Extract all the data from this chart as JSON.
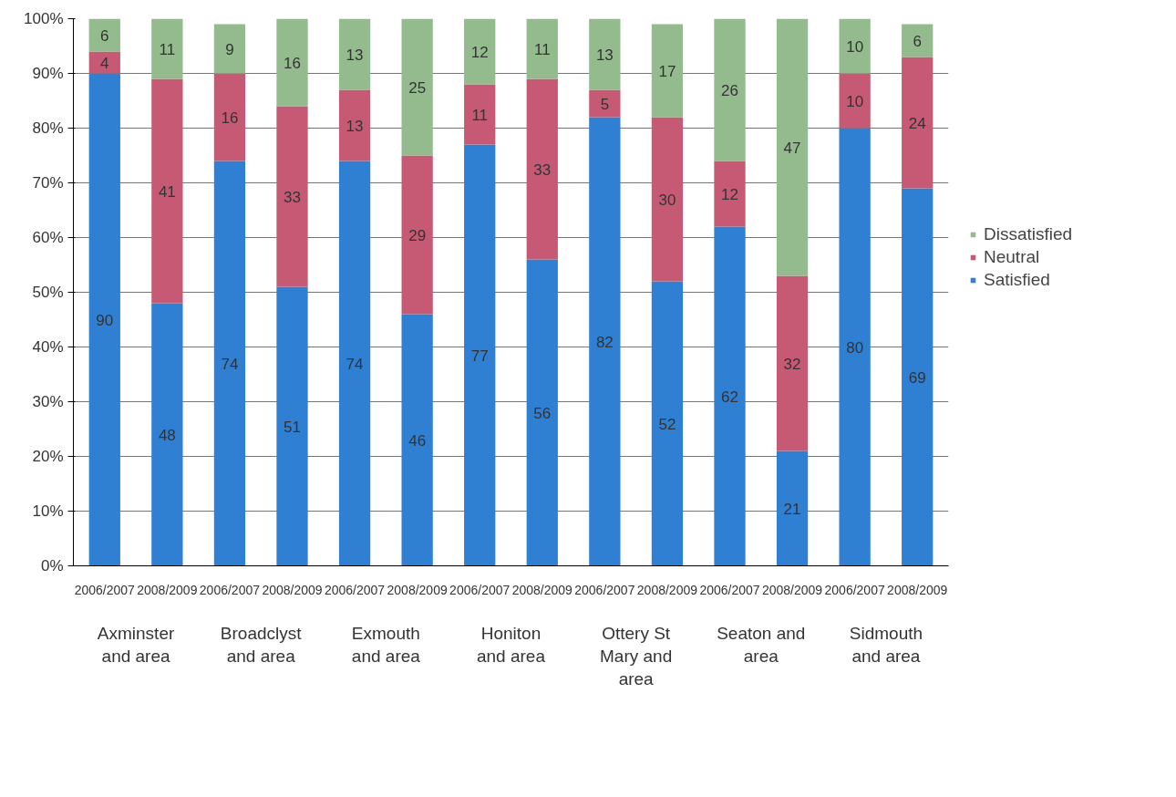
{
  "chart_data": {
    "type": "bar",
    "stacked": true,
    "data_labels": true,
    "grid": "y",
    "legend": "right",
    "categories": [
      "2006/2007",
      "2008/2009",
      "2006/2007",
      "2008/2009",
      "2006/2007",
      "2008/2009",
      "2006/2007",
      "2008/2009",
      "2006/2007",
      "2008/2009",
      "2006/2007",
      "2008/2009",
      "2006/2007",
      "2008/2009"
    ],
    "annotations": [
      "Axminster and area",
      "Broadclyst and area",
      "Exmouth and area",
      "Honiton and area",
      "Ottery St Mary and area",
      "Seaton and area",
      "Sidmouth and area"
    ],
    "ylim": [
      0,
      100
    ],
    "yticks": [
      {
        "value": 0,
        "label": "0%"
      },
      {
        "value": 10,
        "label": "10%"
      },
      {
        "value": 20,
        "label": "20%"
      },
      {
        "value": 30,
        "label": "30%"
      },
      {
        "value": 40,
        "label": "40%"
      },
      {
        "value": 50,
        "label": "50%"
      },
      {
        "value": 60,
        "label": "60%"
      },
      {
        "value": 70,
        "label": "70%"
      },
      {
        "value": 80,
        "label": "80%"
      },
      {
        "value": 90,
        "label": "90%"
      },
      {
        "value": 100,
        "label": "100%"
      }
    ],
    "series": [
      {
        "name": "Satisfied",
        "color": "#2f7fd3",
        "values": [
          90,
          48,
          74,
          51,
          74,
          46,
          77,
          56,
          82,
          52,
          62,
          21,
          80,
          69
        ]
      },
      {
        "name": "Neutral",
        "color": "#c65a74",
        "values": [
          4,
          41,
          16,
          33,
          13,
          29,
          11,
          33,
          5,
          30,
          12,
          32,
          10,
          24
        ]
      },
      {
        "name": "Dissatisfied",
        "color": "#93bb8e",
        "values": [
          6,
          11,
          9,
          16,
          13,
          25,
          12,
          11,
          13,
          17,
          26,
          47,
          10,
          6
        ]
      }
    ]
  }
}
